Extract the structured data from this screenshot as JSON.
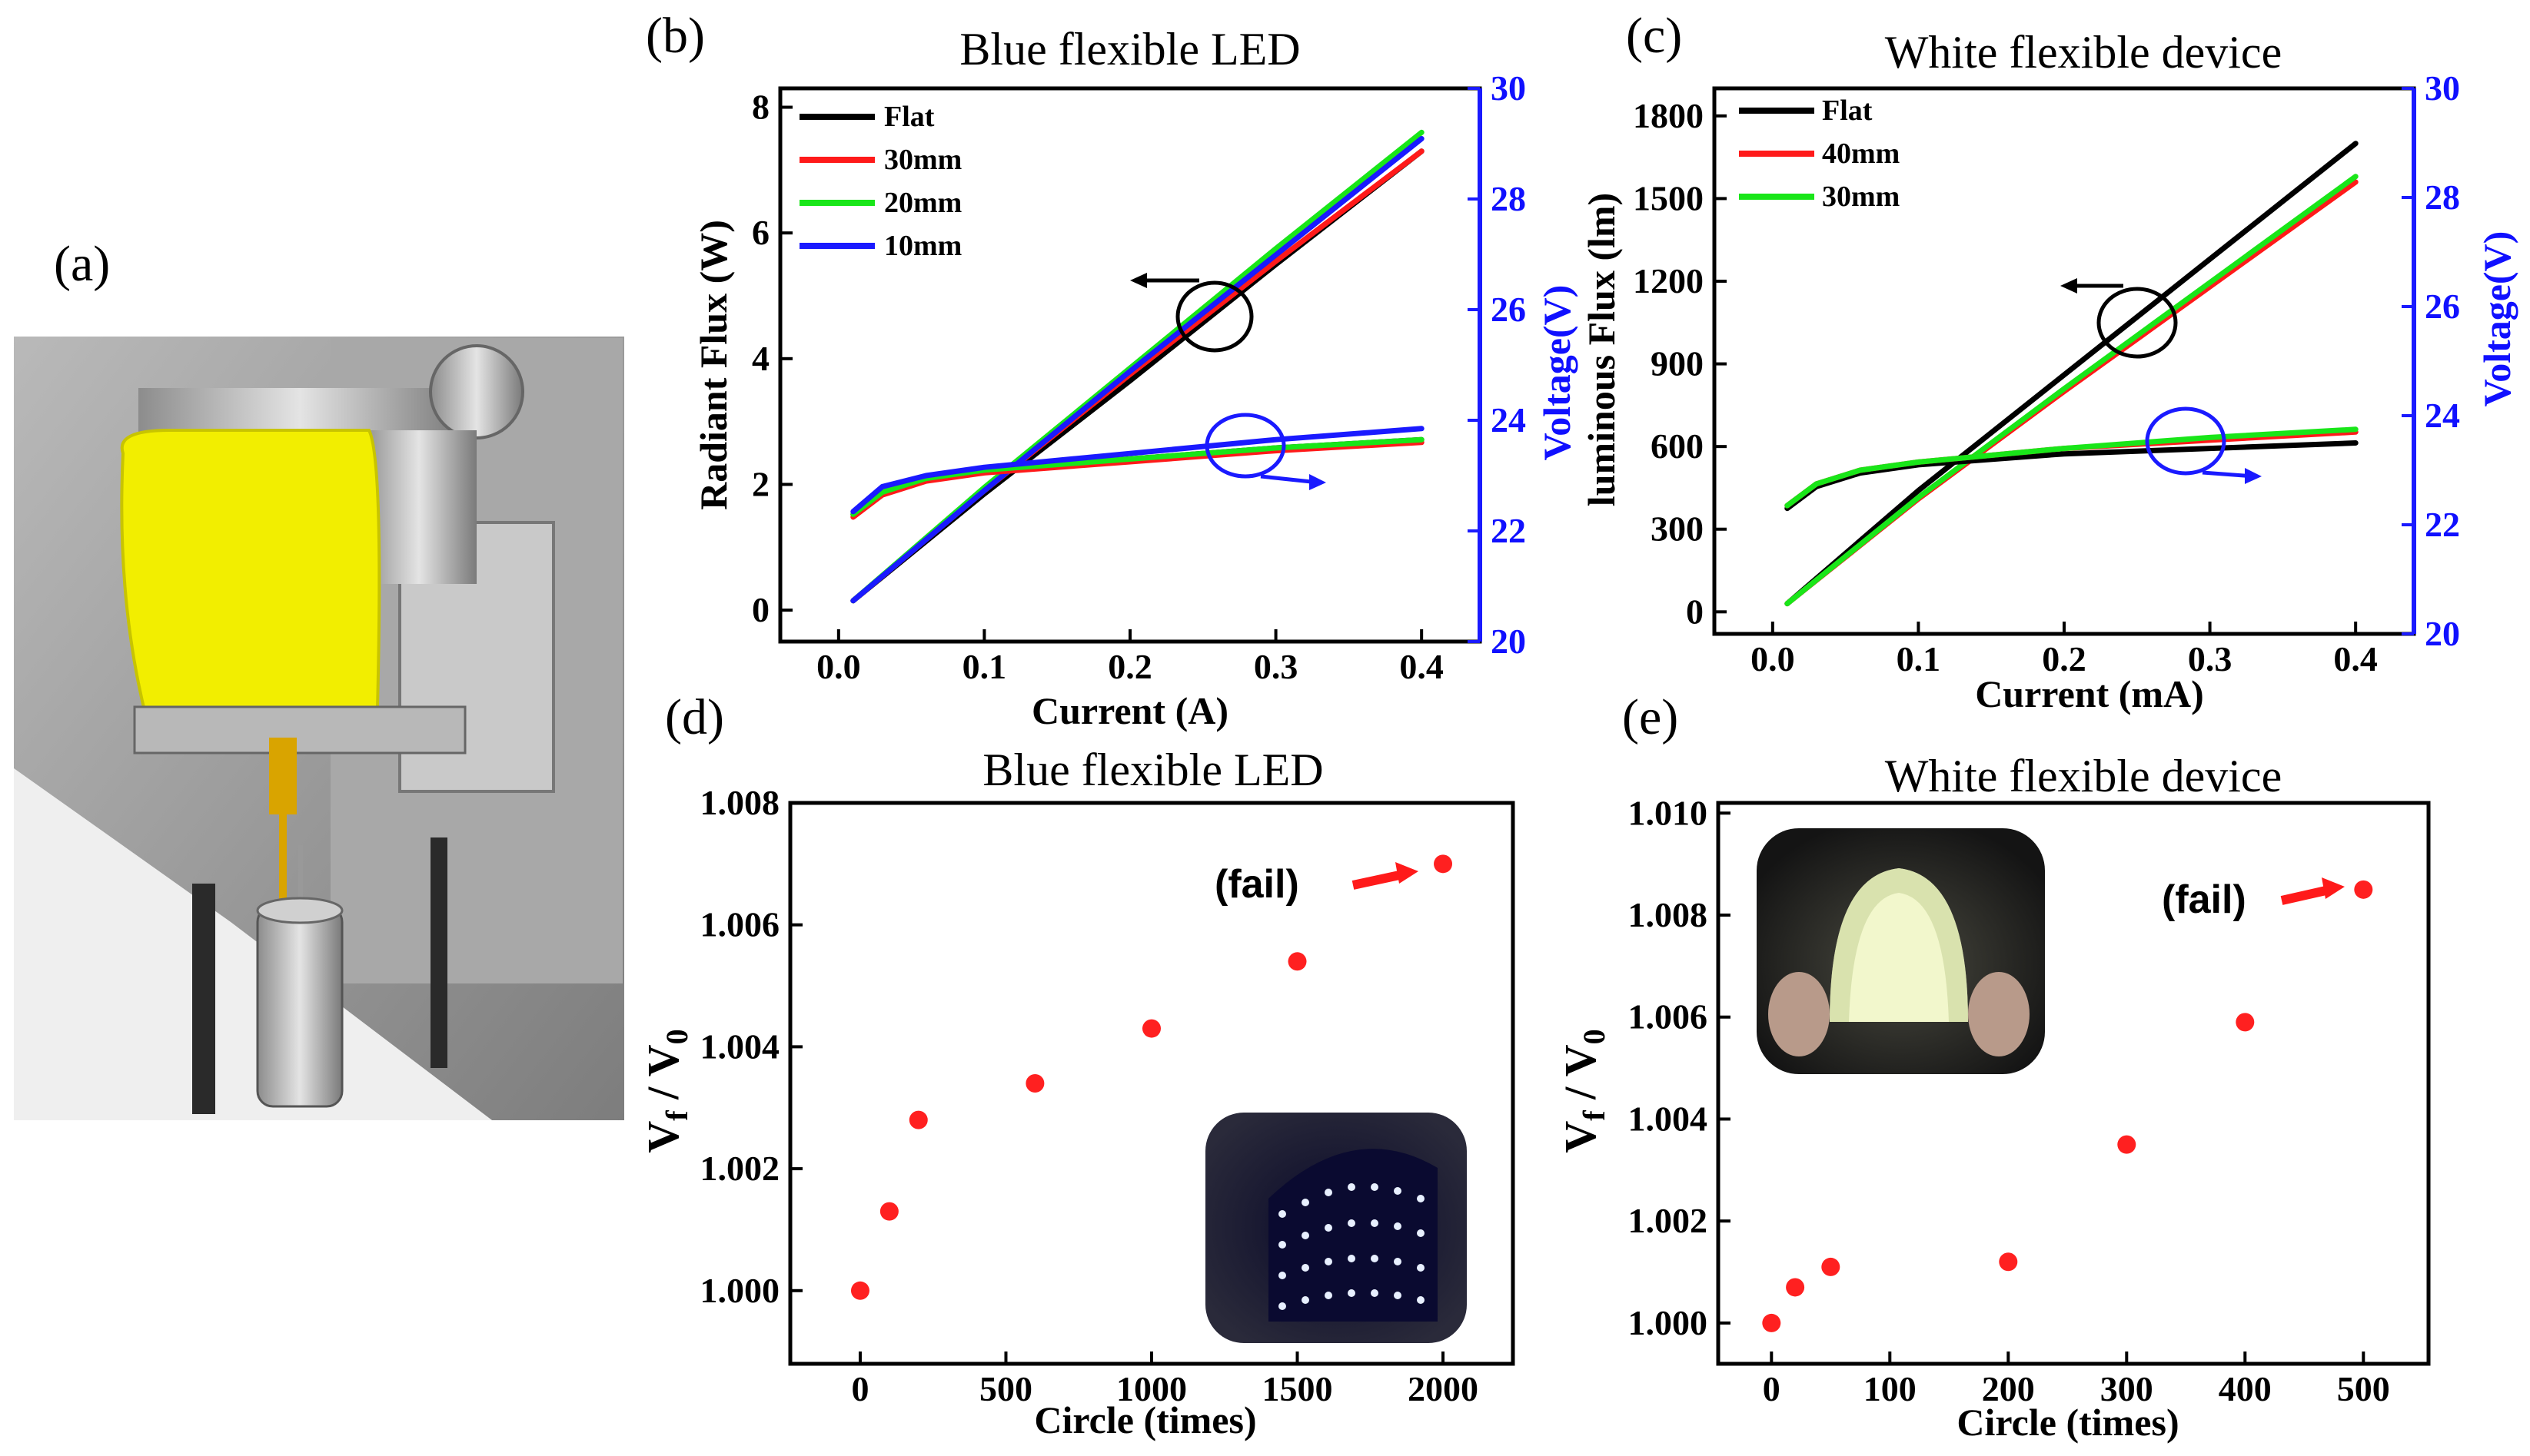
{
  "figure": {
    "panel_labels": {
      "a": "(a)",
      "b": "(b)",
      "c": "(c)",
      "d": "(d)",
      "e": "(e)"
    },
    "photo": {
      "description_icon": "bending-test-photo"
    },
    "colors": {
      "black": "#000000",
      "red": "#ff1a1a",
      "green": "#19e619",
      "blue": "#1a1aff",
      "dot": "#ff2020"
    }
  },
  "chart_data": [
    {
      "id": "b",
      "type": "line",
      "title": "Blue flexible LED",
      "xlabel": "Current (A)",
      "ylabel": "Radiant Flux (W)",
      "y2label": "Voltage(V)",
      "xlim": [
        -0.04,
        0.44
      ],
      "ylim": [
        -0.5,
        8.3
      ],
      "y2lim": [
        20,
        30
      ],
      "xticks": [
        "0.0",
        "0.1",
        "0.2",
        "0.3",
        "0.4"
      ],
      "xtick_values": [
        0.0,
        0.1,
        0.2,
        0.3,
        0.4
      ],
      "yticks": [
        "0",
        "2",
        "4",
        "6",
        "8"
      ],
      "ytick_values": [
        0,
        2,
        4,
        6,
        8
      ],
      "y2ticks": [
        "20",
        "22",
        "24",
        "26",
        "28",
        "30"
      ],
      "y2tick_values": [
        20,
        22,
        24,
        26,
        28,
        30
      ],
      "legend": [
        "Flat",
        "30mm",
        "20mm",
        "10mm"
      ],
      "series": [
        {
          "name": "Flat",
          "color": "#000000",
          "axis": "left",
          "x": [
            0.01,
            0.1,
            0.2,
            0.3,
            0.4
          ],
          "y": [
            0.15,
            1.85,
            3.65,
            5.5,
            7.3
          ]
        },
        {
          "name": "30mm",
          "color": "#ff1a1a",
          "axis": "left",
          "x": [
            0.01,
            0.1,
            0.2,
            0.3,
            0.4
          ],
          "y": [
            0.15,
            1.9,
            3.75,
            5.55,
            7.3
          ]
        },
        {
          "name": "20mm",
          "color": "#19e619",
          "axis": "left",
          "x": [
            0.01,
            0.1,
            0.2,
            0.3,
            0.4
          ],
          "y": [
            0.15,
            1.95,
            3.85,
            5.75,
            7.6
          ]
        },
        {
          "name": "10mm",
          "color": "#1a1aff",
          "axis": "left",
          "x": [
            0.01,
            0.1,
            0.2,
            0.3,
            0.4
          ],
          "y": [
            0.15,
            1.9,
            3.8,
            5.65,
            7.5
          ]
        },
        {
          "name": "Flat V",
          "color": "#000000",
          "axis": "right",
          "x": [
            0.01,
            0.03,
            0.06,
            0.1,
            0.2,
            0.3,
            0.4
          ],
          "y": [
            22.3,
            22.7,
            22.95,
            23.1,
            23.3,
            23.5,
            23.65
          ]
        },
        {
          "name": "30mm V",
          "color": "#ff1a1a",
          "axis": "right",
          "x": [
            0.01,
            0.03,
            0.06,
            0.1,
            0.2,
            0.3,
            0.4
          ],
          "y": [
            22.25,
            22.65,
            22.9,
            23.05,
            23.25,
            23.45,
            23.6
          ]
        },
        {
          "name": "20mm V",
          "color": "#19e619",
          "axis": "right",
          "x": [
            0.01,
            0.03,
            0.06,
            0.1,
            0.2,
            0.3,
            0.4
          ],
          "y": [
            22.3,
            22.7,
            22.95,
            23.1,
            23.3,
            23.5,
            23.65
          ]
        },
        {
          "name": "10mm V",
          "color": "#1a1aff",
          "axis": "right",
          "x": [
            0.01,
            0.03,
            0.06,
            0.1,
            0.2,
            0.3,
            0.4
          ],
          "y": [
            22.35,
            22.8,
            23.0,
            23.15,
            23.4,
            23.65,
            23.85
          ]
        }
      ]
    },
    {
      "id": "c",
      "type": "line",
      "title": "White flexible device",
      "xlabel": "Current (mA)",
      "ylabel": "luminous Flux (lm)",
      "y2label": "Voltage(V)",
      "xlim": [
        -0.04,
        0.44
      ],
      "ylim": [
        -80,
        1900
      ],
      "y2lim": [
        20,
        30
      ],
      "xticks": [
        "0.0",
        "0.1",
        "0.2",
        "0.3",
        "0.4"
      ],
      "xtick_values": [
        0.0,
        0.1,
        0.2,
        0.3,
        0.4
      ],
      "yticks": [
        "0",
        "300",
        "600",
        "900",
        "1200",
        "1500",
        "1800"
      ],
      "ytick_values": [
        0,
        300,
        600,
        900,
        1200,
        1500,
        1800
      ],
      "y2ticks": [
        "20",
        "22",
        "24",
        "26",
        "28",
        "30"
      ],
      "y2tick_values": [
        20,
        22,
        24,
        26,
        28,
        30
      ],
      "legend": [
        "Flat",
        "40mm",
        "30mm"
      ],
      "series": [
        {
          "name": "Flat",
          "color": "#000000",
          "axis": "left",
          "x": [
            0.01,
            0.1,
            0.2,
            0.3,
            0.4
          ],
          "y": [
            30,
            440,
            860,
            1280,
            1700
          ]
        },
        {
          "name": "40mm",
          "color": "#ff1a1a",
          "axis": "left",
          "x": [
            0.01,
            0.1,
            0.2,
            0.3,
            0.4
          ],
          "y": [
            30,
            410,
            800,
            1180,
            1560
          ]
        },
        {
          "name": "30mm",
          "color": "#19e619",
          "axis": "left",
          "x": [
            0.01,
            0.1,
            0.2,
            0.3,
            0.4
          ],
          "y": [
            30,
            415,
            810,
            1195,
            1580
          ]
        },
        {
          "name": "Flat V",
          "color": "#000000",
          "axis": "right",
          "x": [
            0.01,
            0.03,
            0.06,
            0.1,
            0.2,
            0.3,
            0.4
          ],
          "y": [
            22.3,
            22.7,
            22.95,
            23.1,
            23.3,
            23.4,
            23.5
          ]
        },
        {
          "name": "40mm V",
          "color": "#ff1a1a",
          "axis": "right",
          "x": [
            0.01,
            0.03,
            0.06,
            0.1,
            0.2,
            0.3,
            0.4
          ],
          "y": [
            22.35,
            22.75,
            23.0,
            23.15,
            23.4,
            23.55,
            23.7
          ]
        },
        {
          "name": "30mm V",
          "color": "#19e619",
          "axis": "right",
          "x": [
            0.01,
            0.03,
            0.06,
            0.1,
            0.2,
            0.3,
            0.4
          ],
          "y": [
            22.35,
            22.75,
            23.0,
            23.15,
            23.4,
            23.6,
            23.75
          ]
        }
      ]
    },
    {
      "id": "d",
      "type": "scatter",
      "title": "Blue flexible LED",
      "xlabel": "Circle (times)",
      "ylabel": "Vf / V0",
      "xlim": [
        -240,
        2240
      ],
      "ylim": [
        0.9988,
        1.008
      ],
      "xticks": [
        "0",
        "500",
        "1000",
        "1500",
        "2000"
      ],
      "xtick_values": [
        0,
        500,
        1000,
        1500,
        2000
      ],
      "yticks": [
        "1.000",
        "1.002",
        "1.004",
        "1.006",
        "1.008"
      ],
      "ytick_values": [
        1.0,
        1.002,
        1.004,
        1.006,
        1.008
      ],
      "annotation": "(fail)",
      "points": {
        "x": [
          0,
          100,
          200,
          600,
          1000,
          1500,
          2000
        ],
        "y": [
          1.0,
          1.0013,
          1.0028,
          1.0034,
          1.0043,
          1.0054,
          1.007
        ]
      }
    },
    {
      "id": "e",
      "type": "scatter",
      "title": "White flexible device",
      "xlabel": "Circle (times)",
      "ylabel": "Vf / V0",
      "xlim": [
        -45,
        555
      ],
      "ylim": [
        0.9992,
        1.0102
      ],
      "xticks": [
        "0",
        "100",
        "200",
        "300",
        "400",
        "500"
      ],
      "xtick_values": [
        0,
        100,
        200,
        300,
        400,
        500
      ],
      "yticks": [
        "1.000",
        "1.002",
        "1.004",
        "1.006",
        "1.008",
        "1.010"
      ],
      "ytick_values": [
        1.0,
        1.002,
        1.004,
        1.006,
        1.008,
        1.01
      ],
      "annotation": "(fail)",
      "points": {
        "x": [
          0,
          20,
          50,
          200,
          300,
          400,
          500
        ],
        "y": [
          1.0,
          1.0007,
          1.0011,
          1.0012,
          1.0035,
          1.0059,
          1.0085
        ]
      }
    }
  ]
}
